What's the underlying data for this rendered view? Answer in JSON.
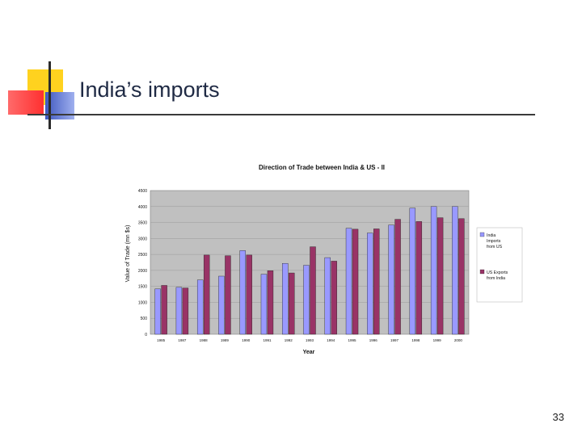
{
  "slide": {
    "title": "India’s imports",
    "page_number": "33"
  },
  "colors": {
    "deco_yellow": "#ffd21f",
    "deco_red": "#ff4040",
    "deco_blue": "#4a63c9",
    "series_india_imports": "#9999ff",
    "series_us_exports": "#993366",
    "plot_background": "#c0c0c0"
  },
  "chart_data": {
    "type": "bar",
    "title": "Direction of Trade between India & US - II",
    "xlabel": "Year",
    "ylabel": "Value of Trade (mn $s)",
    "ylim": [
      0,
      4500
    ],
    "yticks": [
      "0",
      "500",
      "1000",
      "1500",
      "2000",
      "2500",
      "3000",
      "3500",
      "4000",
      "4500"
    ],
    "grid": true,
    "legend_position": "right",
    "categories": [
      "1985",
      "1987",
      "1988",
      "1989",
      "1990",
      "1991",
      "1992",
      "1993",
      "1994",
      "1995",
      "1996",
      "1997",
      "1998",
      "1999",
      "2000"
    ],
    "series": [
      {
        "name": "India Imports from US",
        "color": "#9999ff",
        "values": [
          1420,
          1470,
          1700,
          1820,
          2620,
          1880,
          2220,
          2160,
          2400,
          3320,
          3170,
          3420,
          3950,
          4000,
          4000
        ]
      },
      {
        "name": "US Exports from India",
        "color": "#993366",
        "values": [
          1530,
          1450,
          2480,
          2460,
          2480,
          1990,
          1920,
          2740,
          2290,
          3290,
          3300,
          3600,
          3530,
          3650,
          3620
        ]
      }
    ]
  }
}
